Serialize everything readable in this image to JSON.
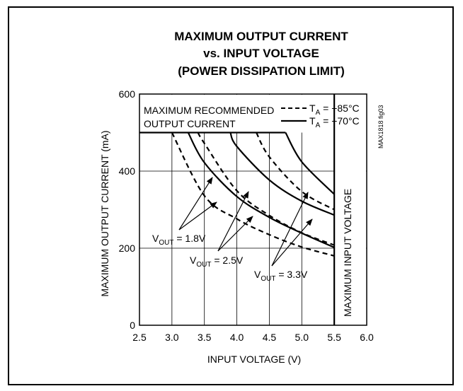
{
  "chart_data": {
    "type": "line",
    "title": [
      "MAXIMUM OUTPUT CURRENT",
      "vs. INPUT VOLTAGE",
      "(POWER DISSIPATION LIMIT)"
    ],
    "xlabel": "INPUT VOLTAGE (V)",
    "ylabel": "MAXIMUM OUTPUT CURRENT (mA)",
    "xlim": [
      2.5,
      6.0
    ],
    "ylim": [
      0,
      600
    ],
    "x_ticks": [
      "2.5",
      "3.0",
      "3.5",
      "4.0",
      "4.5",
      "5.0",
      "5.5",
      "6.0"
    ],
    "y_ticks": [
      "0",
      "200",
      "400",
      "600"
    ],
    "grid": true,
    "legend": {
      "dashed": {
        "prefix": "T",
        "sub": "A",
        "value": " = +85°C"
      },
      "solid": {
        "prefix": "T",
        "sub": "A",
        "value": " = +70°C"
      }
    },
    "limits": {
      "max_current": 500,
      "max_current_label": [
        "MAXIMUM RECOMMENDED",
        "OUTPUT CURRENT"
      ],
      "max_voltage": 5.5,
      "max_voltage_label": "MAXIMUM INPUT VOLTAGE"
    },
    "series": [
      {
        "temp": "+85°C",
        "vout": "1.8V",
        "style": "dashed",
        "points": [
          [
            3.0,
            500
          ],
          [
            3.5,
            336
          ],
          [
            4.0,
            276
          ],
          [
            4.5,
            235
          ],
          [
            5.0,
            203
          ],
          [
            5.5,
            180
          ]
        ]
      },
      {
        "temp": "+70°C",
        "vout": "1.8V",
        "style": "solid",
        "points": [
          [
            3.25,
            500
          ],
          [
            3.5,
            422
          ],
          [
            4.0,
            334
          ],
          [
            4.5,
            280
          ],
          [
            5.0,
            239
          ],
          [
            5.5,
            202
          ]
        ]
      },
      {
        "temp": "+85°C",
        "vout": "2.5V",
        "style": "dashed",
        "points": [
          [
            3.4,
            500
          ],
          [
            3.5,
            472
          ],
          [
            4.0,
            349
          ],
          [
            4.5,
            285
          ],
          [
            5.0,
            240
          ],
          [
            5.5,
            208
          ]
        ]
      },
      {
        "temp": "+70°C",
        "vout": "2.5V",
        "style": "solid",
        "points": [
          [
            3.9,
            500
          ],
          [
            4.0,
            464
          ],
          [
            4.5,
            377
          ],
          [
            5.0,
            322
          ],
          [
            5.5,
            286
          ]
        ]
      },
      {
        "temp": "+85°C",
        "vout": "3.3V",
        "style": "dashed",
        "points": [
          [
            4.3,
            500
          ],
          [
            4.5,
            437
          ],
          [
            5.0,
            347
          ],
          [
            5.5,
            300
          ]
        ]
      },
      {
        "temp": "+70°C",
        "vout": "3.3V",
        "style": "solid",
        "points": [
          [
            4.75,
            500
          ],
          [
            5.0,
            424
          ],
          [
            5.5,
            340
          ]
        ]
      }
    ],
    "annotations": [
      {
        "prefix": "V",
        "sub": "OUT",
        "value": " = 1.8V"
      },
      {
        "prefix": "V",
        "sub": "OUT",
        "value": " = 2.5V"
      },
      {
        "prefix": "V",
        "sub": "OUT",
        "value": " = 3.3V"
      }
    ],
    "side_note": "MAX1818 fig03"
  }
}
